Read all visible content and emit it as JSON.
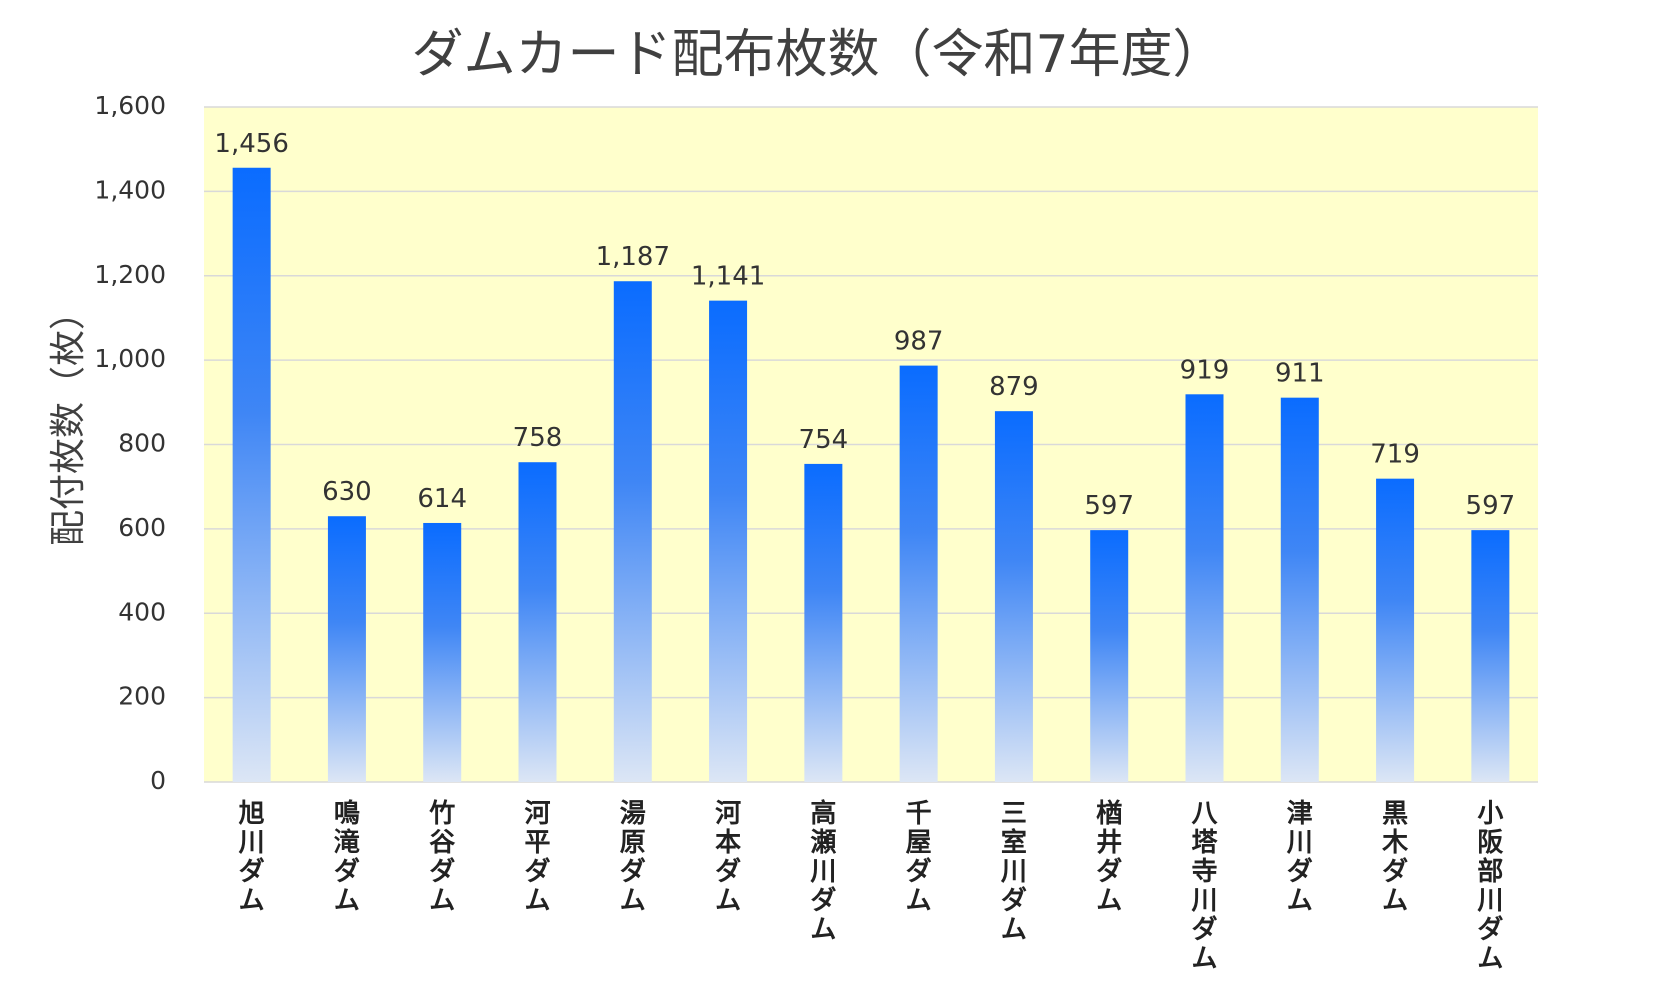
{
  "chart_data": {
    "type": "bar",
    "title": "ダムカード配布枚数（令和7年度）",
    "ylabel": "配付枚数（枚）",
    "xlabel": "",
    "ylim": [
      0,
      1600
    ],
    "yticks": [
      0,
      200,
      400,
      600,
      800,
      1000,
      1200,
      1400,
      1600
    ],
    "ytick_labels": [
      "0",
      "200",
      "400",
      "600",
      "800",
      "1,000",
      "1,200",
      "1,400",
      "1,600"
    ],
    "grid": true,
    "categories": [
      "旭川ダム",
      "鳴滝ダム",
      "竹谷ダム",
      "河平ダム",
      "湯原ダム",
      "河本ダム",
      "高瀬川ダム",
      "千屋ダム",
      "三室川ダム",
      "楢井ダム",
      "八塔寺川ダム",
      "津川ダム",
      "黒木ダム",
      "小阪部川ダム"
    ],
    "values": [
      1456,
      630,
      614,
      758,
      1187,
      1141,
      754,
      987,
      879,
      597,
      919,
      911,
      719,
      597
    ],
    "value_labels": [
      "1,456",
      "630",
      "614",
      "758",
      "1,187",
      "1,141",
      "754",
      "987",
      "879",
      "597",
      "919",
      "911",
      "719",
      "597"
    ],
    "colors": {
      "plot_background": "#FFFFCC",
      "bar_top": "#0A6CFF",
      "bar_bottom": "#DCE6F5",
      "grid": "#D9D9D9"
    }
  }
}
